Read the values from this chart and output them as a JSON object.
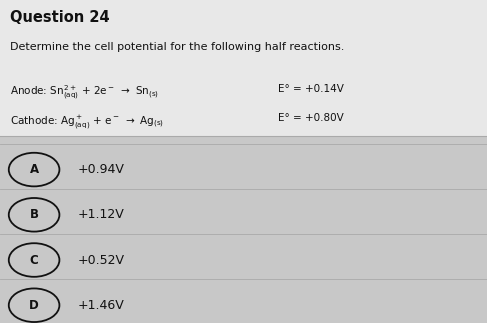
{
  "title": "Question 24",
  "question_text": "Determine the cell potential for the following half reactions.",
  "anode_line": "Anode: Sn2+(aq) + 2e- -> Sn(s)",
  "anode_e": "E° = +0.14V",
  "cathode_line": "Cathode: Ag+(aq) + e- -> Ag(s)",
  "cathode_e": "E° = +0.80V",
  "choices": [
    "A",
    "B",
    "C",
    "D"
  ],
  "answers": [
    "+0.94V",
    "+1.12V",
    "+0.52V",
    "+1.46V"
  ],
  "bg_color": "#c8c8c8",
  "top_bg": "#e8e8e8",
  "text_color": "#111111",
  "title_fontsize": 10.5,
  "body_fontsize": 8.0,
  "choice_fontsize": 9.0,
  "divider_color": "#aaaaaa"
}
